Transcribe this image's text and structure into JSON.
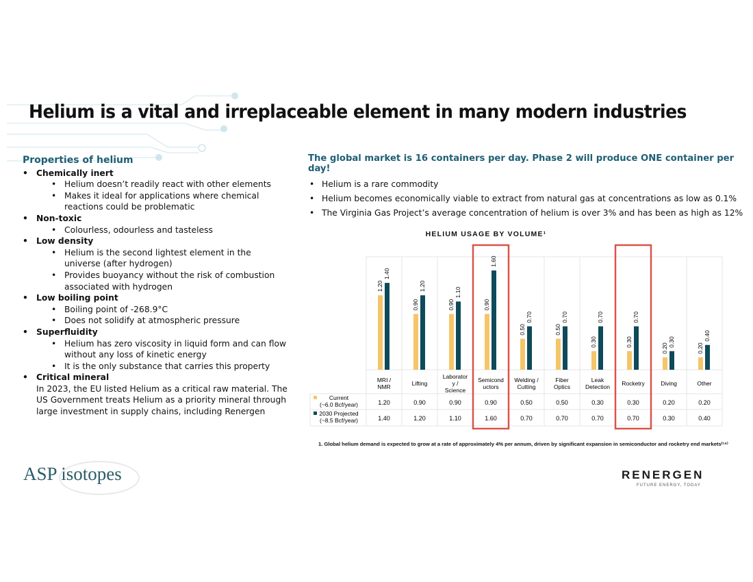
{
  "title": "Helium is a vital and irreplaceable element in many modern industries",
  "left": {
    "heading": "Properties of helium",
    "items": [
      {
        "label": "Chemically inert",
        "subs": [
          "Helium doesn’t readily react with other elements",
          "Makes it ideal for applications where chemical reactions could be problematic"
        ]
      },
      {
        "label": "Non-toxic",
        "subs": [
          "Colourless, odourless and tasteless"
        ]
      },
      {
        "label": "Low density",
        "subs": [
          "Helium is the second lightest element in the universe (after hydrogen)",
          "Provides buoyancy without the risk of combustion associated with hydrogen"
        ]
      },
      {
        "label": "Low boiling point",
        "subs": [
          "Boiling point of -268.9°C",
          "Does not solidify at atmospheric pressure"
        ]
      },
      {
        "label": "Superfluidity",
        "subs": [
          "Helium has zero viscosity in liquid form and can flow without any loss of kinetic energy",
          "It is the only substance that carries this property"
        ]
      },
      {
        "label": "Critical mineral",
        "para": "In 2023, the EU listed Helium as a critical raw material.  The US Government treats Helium as a priority mineral through large investment in supply chains, including Renergen"
      }
    ]
  },
  "right": {
    "heading": "The global market is 16 containers per day. Phase 2 will produce ONE container per day!",
    "bullets": [
      "Helium is a rare commodity",
      "Helium becomes economically viable to extract from natural gas at concentrations as low as 0.1%",
      "The Virginia Gas Project’s average concentration of helium is over 3% and has been as high as 12%"
    ]
  },
  "chart_data": {
    "type": "bar",
    "title": "HELIUM USAGE BY VOLUME¹",
    "categories": [
      "MRI / NMR",
      "Lifting",
      "Laborator y / Science",
      "Semicond uctors",
      "Welding / Cutting",
      "Fiber Optics",
      "Leak Detection",
      "Rocketry",
      "Diving",
      "Other"
    ],
    "series": [
      {
        "name": "Current (~6.0 Bcf/year)",
        "color": "#F5C56A",
        "values": [
          1.2,
          0.9,
          0.9,
          0.9,
          0.5,
          0.5,
          0.3,
          0.3,
          0.2,
          0.2
        ]
      },
      {
        "name": "2030 Projected (~8.5 Bcf/year)",
        "color": "#0E4A5A",
        "values": [
          1.4,
          1.2,
          1.1,
          1.6,
          0.7,
          0.7,
          0.7,
          0.7,
          0.3,
          0.4
        ]
      }
    ],
    "highlighted": [
      "Semicond uctors",
      "Rocketry"
    ],
    "highlight_color": "#D9534A",
    "ylim": [
      0,
      1.8
    ]
  },
  "footnote": "1. Global helium demand is expected to grow at a rate of approximately 4% per annum, driven by significant expansion in semiconductor and rocketry end markets⁽¹⁴⁾",
  "logos": {
    "asp": "ASP isotopes",
    "renergen": "RENERGEN",
    "renergen_tagline": "FUTURE ENERGY, TODAY"
  }
}
